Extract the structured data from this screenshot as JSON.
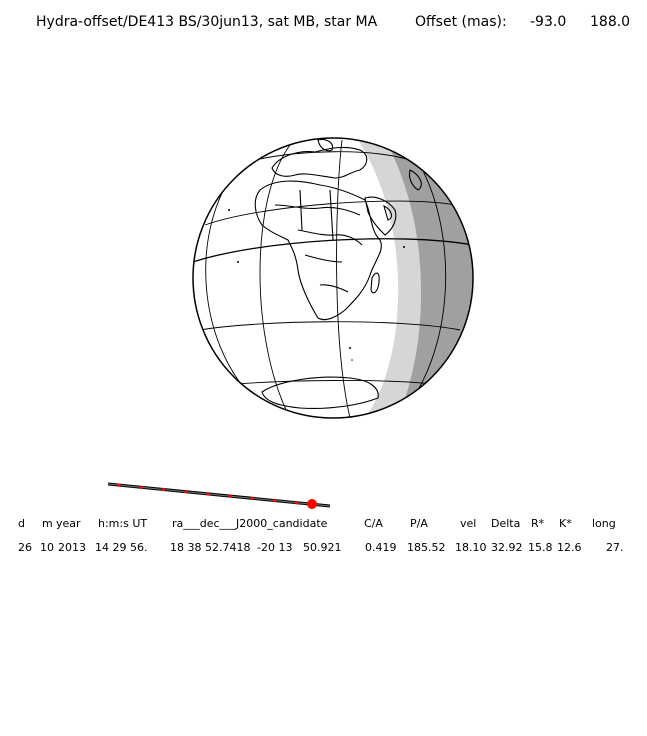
{
  "title": {
    "text": "Hydra-offset/DE413 BS/30jun13, sat MB, star MA",
    "offset_label": "Offset (mas):",
    "offset_ra": "-93.0",
    "offset_dec": "188.0"
  },
  "header": [
    "d",
    "m",
    "year",
    "h:m:s UT",
    "ra___dec___J2000_candidate",
    "C/A",
    "P/A",
    "vel",
    "Delta",
    "R*",
    "K*",
    "long"
  ],
  "values": [
    "26",
    "10",
    "2013",
    "14 29 56.",
    "18 38 52.7418",
    "-20 13",
    "50.921",
    "0.419",
    "185.52",
    "18.10",
    "32.92",
    "15.8",
    "12.6",
    "27."
  ],
  "colors": {
    "day": "#ffffff",
    "twilight": "#d6d6d6",
    "night": "#a0a0a0",
    "track_dot": "#ff0000"
  }
}
